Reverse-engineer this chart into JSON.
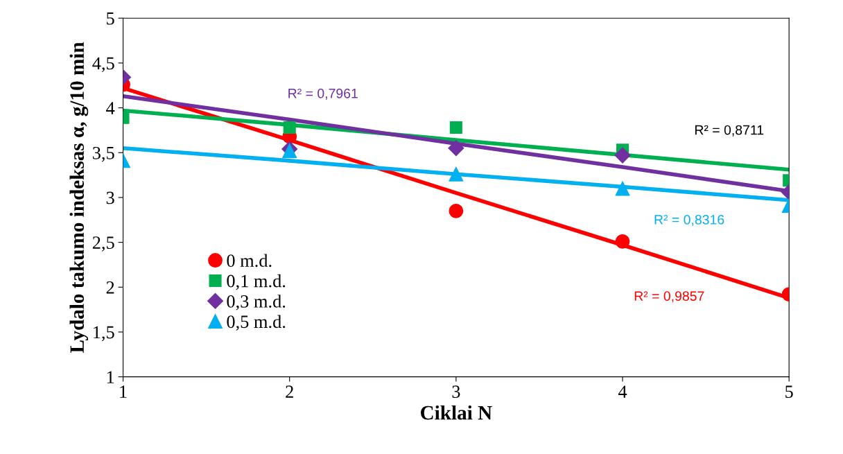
{
  "chart_data": {
    "type": "scatter",
    "xlabel": "Ciklai N",
    "ylabel": "Lydalo takumo indeksas α, g/10 min",
    "x": [
      1,
      2,
      3,
      4,
      5
    ],
    "xlim": [
      1,
      5
    ],
    "xticks": [
      1,
      2,
      3,
      4,
      5
    ],
    "ylim": [
      1,
      5
    ],
    "yticks": [
      1,
      {
        "value": 1.5,
        "label": "1,5"
      },
      2,
      {
        "value": 2.5,
        "label": "2,5"
      },
      3,
      {
        "value": 3.5,
        "label": "3,5"
      },
      4,
      {
        "value": 4.5,
        "label": "4,5"
      },
      5
    ],
    "grid": false,
    "legend": "lower left",
    "series": [
      {
        "name": "0 m.d.",
        "color": "#ff0000",
        "marker": "circle",
        "values": [
          4.26,
          3.68,
          2.85,
          2.51,
          1.92
        ]
      },
      {
        "name": "0,1 m.d.",
        "color": "#00b050",
        "marker": "square",
        "values": [
          3.89,
          3.78,
          3.78,
          3.53,
          3.19
        ]
      },
      {
        "name": "0,3 m.d.",
        "color": "#7030a0",
        "marker": "diamond",
        "values": [
          4.34,
          3.54,
          3.55,
          3.47,
          3.06
        ]
      },
      {
        "name": "0,5 m.d.",
        "color": "#00b0f0",
        "marker": "triangle",
        "values": [
          3.41,
          3.52,
          3.26,
          3.1,
          2.91
        ]
      },
      {
        "type": "line",
        "color": "#ff0000",
        "values": [
          4.22,
          3.64,
          3.05,
          2.47,
          1.88
        ]
      },
      {
        "type": "line",
        "color": "#00b050",
        "x": [
          1,
          2,
          3,
          5
        ],
        "values": [
          3.97,
          3.81,
          3.64,
          3.31
        ]
      },
      {
        "type": "line",
        "color": "#7030a0",
        "values": [
          4.13,
          3.87,
          3.6,
          3.34,
          3.07
        ]
      },
      {
        "type": "line",
        "color": "#00b0f0",
        "values": [
          3.55,
          3.41,
          3.26,
          3.12,
          2.97
        ]
      }
    ],
    "annotations": [
      "R² = 0,7961",
      "R² = 0,8711",
      "R² = 0,8316",
      "R² = 0,9857"
    ]
  }
}
